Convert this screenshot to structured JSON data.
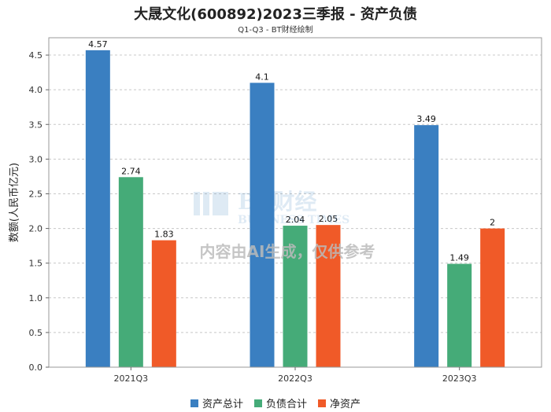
{
  "header": {
    "title": "大晟文化(600892)2023三季报 - 资产负债",
    "subtitle": "Q1-Q3 - BT财经绘制"
  },
  "watermark": {
    "brand": "BT财经",
    "brand_sub": "BUSINESS TIMES",
    "ai_note": "内容由AI生成，仅供参考"
  },
  "chart_data": {
    "type": "bar",
    "title": "大晟文化(600892)2023三季报 - 资产负债",
    "subtitle": "Q1-Q3 - BT财经绘制",
    "xlabel": "",
    "ylabel": "数额(人民币亿元)",
    "categories": [
      "2021Q3",
      "2022Q3",
      "2023Q3"
    ],
    "series": [
      {
        "name": "资产总计",
        "color": "#3a7fc1",
        "values": [
          4.57,
          4.1,
          3.49
        ],
        "labels": [
          "4.57",
          "4.1",
          "3.49"
        ]
      },
      {
        "name": "负债合计",
        "color": "#45ab78",
        "values": [
          2.74,
          2.04,
          1.49
        ],
        "labels": [
          "2.74",
          "2.04",
          "1.49"
        ]
      },
      {
        "name": "净资产",
        "color": "#f05a28",
        "values": [
          1.83,
          2.05,
          2.0
        ],
        "labels": [
          "1.83",
          "2.05",
          "2"
        ]
      }
    ],
    "ylim": [
      0,
      4.75
    ],
    "yticks": [
      "0.0",
      "0.5",
      "1.0",
      "1.5",
      "2.0",
      "2.5",
      "3.0",
      "3.5",
      "4.0",
      "4.5"
    ],
    "grid": true,
    "legend": "bottom"
  }
}
